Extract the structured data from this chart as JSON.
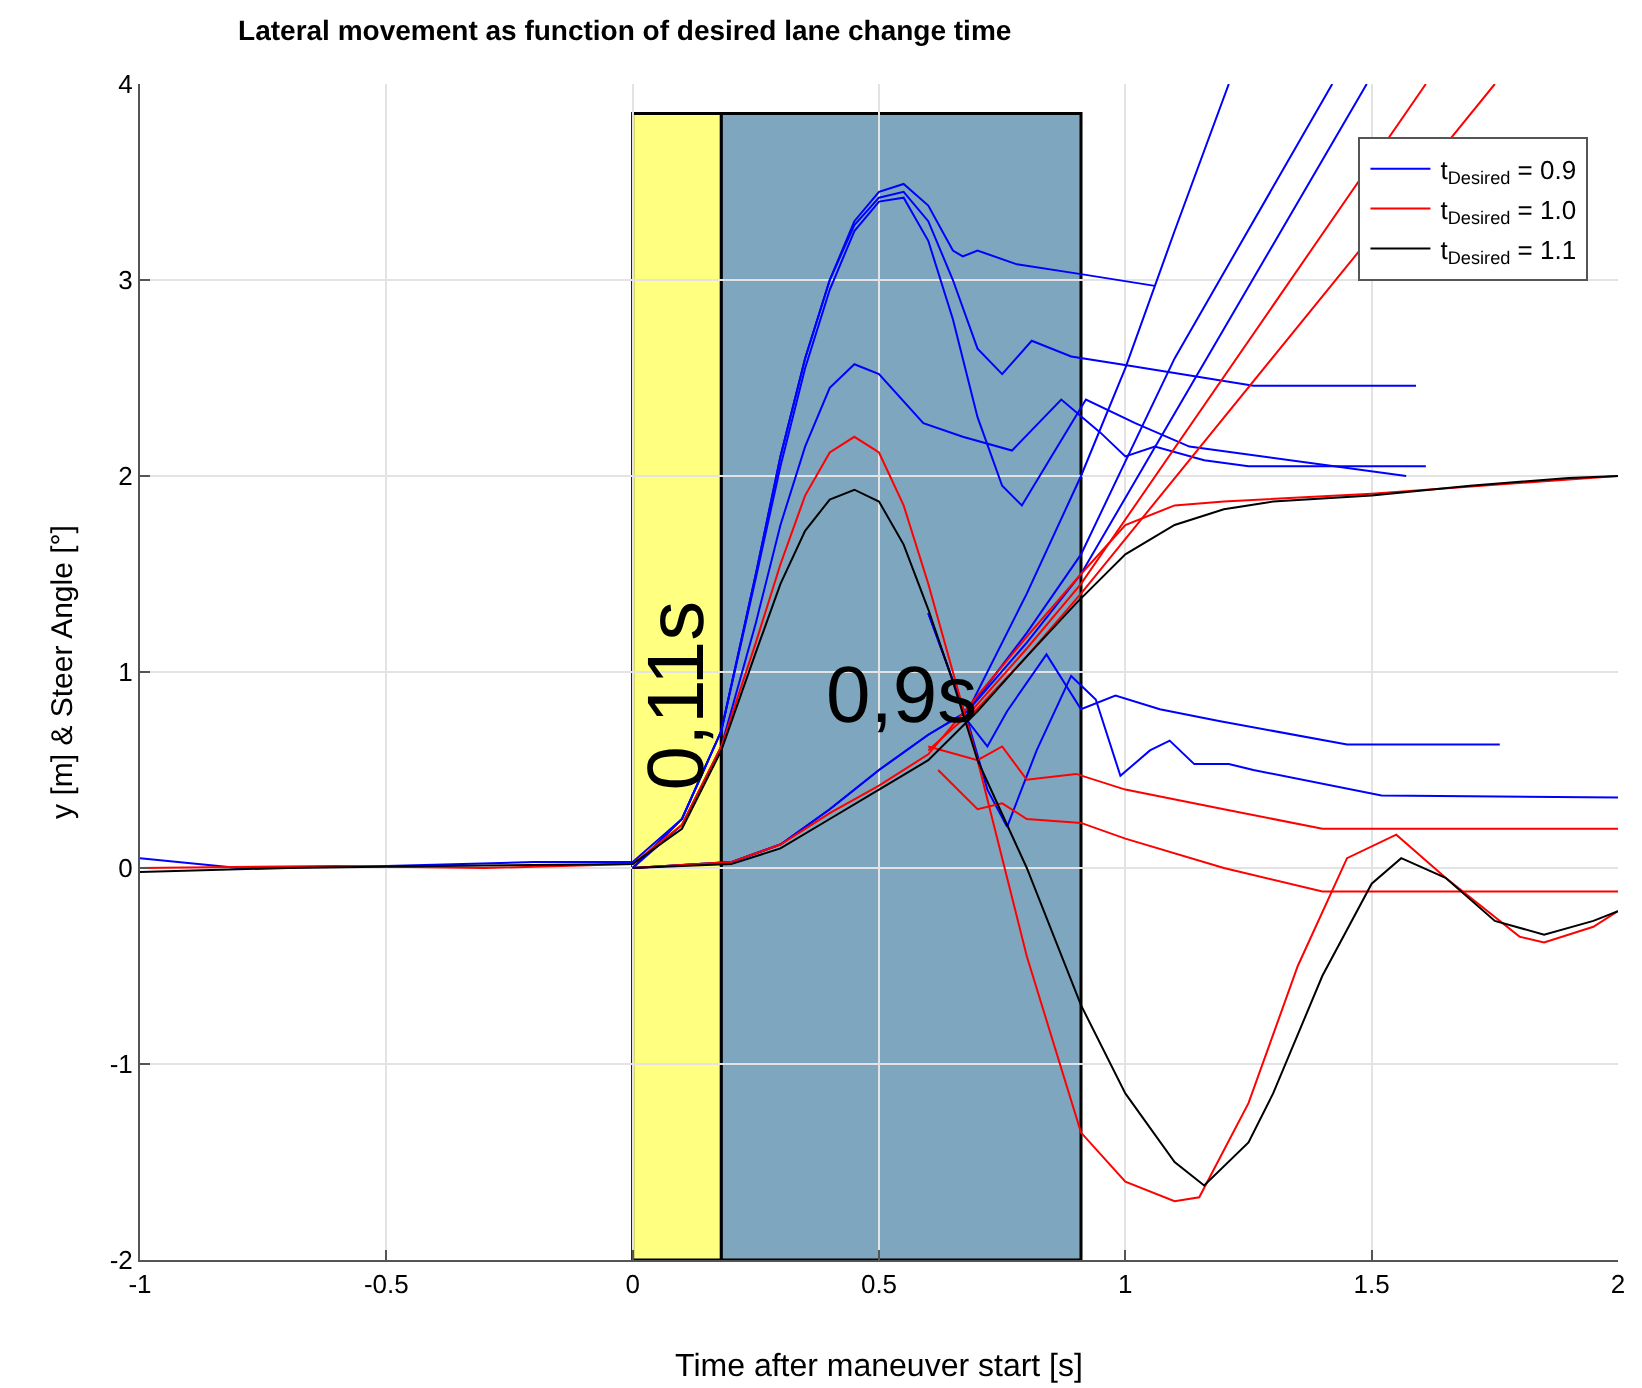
{
  "chart_data": {
    "type": "line",
    "title": "Lateral movement as function of desired lane change time",
    "xlabel": "Time after maneuver start [s]",
    "ylabel": "y [m] & Steer Angle [°]",
    "xlim": [
      -1,
      2
    ],
    "xticks": [
      -1,
      -0.5,
      0,
      0.5,
      1,
      1.5,
      2
    ],
    "ylim": [
      -2,
      4
    ],
    "yticks": [
      -2,
      -1,
      0,
      1,
      2,
      3,
      4
    ],
    "grid": true,
    "legend": "top right",
    "marker": "none",
    "line_style": "solid",
    "bands": [
      {
        "axis": "x",
        "from": 0,
        "to": 0.18,
        "label": "0,11s",
        "color": "#ffff80"
      },
      {
        "axis": "x",
        "from": 0.18,
        "to": 0.91,
        "label": "0,9s",
        "color": "#7fa6bf"
      }
    ],
    "series": [
      {
        "name": "t$_{Desired}$ = 0.9",
        "color": "#0000ff",
        "x": [
          -1,
          -0.8,
          -0.5,
          -0.2,
          0,
          0.1,
          0.18,
          0.25,
          0.3,
          0.35,
          0.4,
          0.45,
          0.5,
          0.55,
          0.6,
          0.65,
          0.67,
          0.7,
          0.78,
          0.91,
          1.06
        ],
        "values": [
          0.05,
          0,
          0.01,
          0.03,
          0.03,
          0.25,
          0.7,
          1.5,
          2.1,
          2.6,
          3.0,
          3.3,
          3.45,
          3.49,
          3.38,
          3.15,
          3.12,
          3.15,
          3.08,
          3.03,
          2.97
        ]
      },
      {
        "color": "#0000ff",
        "x": [
          0,
          0.1,
          0.18,
          0.25,
          0.3,
          0.35,
          0.4,
          0.45,
          0.5,
          0.55,
          0.6,
          0.65,
          0.7,
          0.75,
          0.81,
          0.89,
          0.99,
          1.26,
          1.59
        ],
        "values": [
          0,
          0.25,
          0.7,
          1.5,
          2.1,
          2.6,
          3.0,
          3.28,
          3.42,
          3.45,
          3.3,
          3.0,
          2.65,
          2.52,
          2.69,
          2.61,
          2.57,
          2.46,
          2.46
        ]
      },
      {
        "color": "#0000ff",
        "x": [
          0,
          0.1,
          0.18,
          0.25,
          0.3,
          0.35,
          0.4,
          0.45,
          0.5,
          0.55,
          0.6,
          0.65,
          0.7,
          0.75,
          0.79,
          0.85,
          0.92,
          1.02,
          1.13,
          1.57
        ],
        "values": [
          0,
          0.25,
          0.7,
          1.48,
          2.05,
          2.55,
          2.95,
          3.25,
          3.4,
          3.42,
          3.2,
          2.8,
          2.3,
          1.95,
          1.85,
          2.1,
          2.39,
          2.27,
          2.15,
          2.0
        ]
      },
      {
        "color": "#0000ff",
        "x": [
          0,
          0.1,
          0.18,
          0.25,
          0.3,
          0.35,
          0.4,
          0.45,
          0.5,
          0.59,
          0.67,
          0.77,
          0.87,
          0.95,
          1.0,
          1.06,
          1.16,
          1.25,
          1.61
        ],
        "values": [
          0,
          0.22,
          0.62,
          1.25,
          1.75,
          2.15,
          2.45,
          2.57,
          2.52,
          2.27,
          2.2,
          2.13,
          2.39,
          2.22,
          2.1,
          2.15,
          2.08,
          2.05,
          2.05
        ]
      },
      {
        "color": "#0000ff",
        "x": [
          0.6,
          0.68,
          0.72,
          0.76,
          0.82,
          0.89,
          0.94,
          0.99,
          1.05,
          1.09,
          1.14,
          1.21,
          1.26,
          1.52,
          2.0
        ],
        "values": [
          1.3,
          0.75,
          0.4,
          0.21,
          0.6,
          0.98,
          0.86,
          0.47,
          0.6,
          0.65,
          0.53,
          0.53,
          0.5,
          0.37,
          0.36
        ]
      },
      {
        "color": "#0000ff",
        "x": [
          0.6,
          0.68,
          0.72,
          0.76,
          0.84,
          0.91,
          0.98,
          1.07,
          1.19,
          1.45,
          1.76
        ],
        "values": [
          1.3,
          0.75,
          0.62,
          0.8,
          1.09,
          0.81,
          0.88,
          0.81,
          0.75,
          0.63,
          0.63
        ]
      },
      {
        "color": "#0000ff",
        "x": [
          0,
          0.2,
          0.3,
          0.4,
          0.5,
          0.6,
          0.68,
          0.8,
          0.91,
          1.0,
          1.1,
          1.21
        ],
        "values": [
          0,
          0.03,
          0.12,
          0.3,
          0.5,
          0.68,
          0.8,
          1.4,
          2.0,
          2.55,
          3.25,
          4.0
        ]
      },
      {
        "color": "#0000ff",
        "x": [
          0,
          0.2,
          0.3,
          0.4,
          0.5,
          0.6,
          0.68,
          0.8,
          0.91,
          1.1,
          1.42
        ],
        "values": [
          0,
          0.03,
          0.12,
          0.3,
          0.5,
          0.68,
          0.8,
          1.2,
          1.6,
          2.6,
          4.0
        ]
      },
      {
        "color": "#0000ff",
        "x": [
          0.68,
          0.8,
          0.91,
          1.49
        ],
        "values": [
          0.8,
          1.15,
          1.5,
          4.0
        ]
      },
      {
        "name": "t$_{Desired}$ = 1.0",
        "color": "#ff0000",
        "x": [
          -1,
          -0.6,
          -0.3,
          0,
          0.1,
          0.18,
          0.25,
          0.3,
          0.35,
          0.4,
          0.45,
          0.5,
          0.55,
          0.6,
          0.65,
          0.7,
          0.8,
          0.91,
          1.0,
          1.1,
          1.15,
          1.25,
          1.35,
          1.45,
          1.55,
          1.65,
          1.8,
          1.85,
          1.95,
          2.0
        ],
        "values": [
          0,
          0.01,
          0,
          0.02,
          0.22,
          0.62,
          1.15,
          1.55,
          1.9,
          2.12,
          2.2,
          2.12,
          1.85,
          1.45,
          1.0,
          0.55,
          -0.45,
          -1.35,
          -1.6,
          -1.7,
          -1.68,
          -1.2,
          -0.5,
          0.05,
          0.17,
          -0.05,
          -0.35,
          -0.38,
          -0.3,
          -0.22
        ]
      },
      {
        "color": "#ff0000",
        "x": [
          0.6,
          0.7,
          0.75,
          0.8,
          0.9,
          1.0,
          1.2,
          1.4,
          2.0
        ],
        "values": [
          0.62,
          0.55,
          0.62,
          0.45,
          0.48,
          0.4,
          0.3,
          0.2,
          0.2
        ]
      },
      {
        "color": "#ff0000",
        "x": [
          0.62,
          0.7,
          0.75,
          0.8,
          0.91,
          1.0,
          1.2,
          1.4,
          2.0
        ],
        "values": [
          0.5,
          0.3,
          0.33,
          0.25,
          0.23,
          0.15,
          0.0,
          -0.12,
          -0.12
        ]
      },
      {
        "color": "#ff0000",
        "x": [
          0,
          0.2,
          0.3,
          0.4,
          0.5,
          0.6,
          0.7,
          0.8,
          0.91,
          1.0,
          1.1,
          1.2,
          1.5,
          2.0
        ],
        "values": [
          0,
          0.03,
          0.12,
          0.28,
          0.42,
          0.58,
          0.88,
          1.18,
          1.5,
          1.75,
          1.85,
          1.87,
          1.91,
          2.0
        ]
      },
      {
        "color": "#ff0000",
        "x": [
          0.6,
          0.68,
          0.8,
          0.91,
          1.61
        ],
        "values": [
          0.6,
          0.78,
          1.12,
          1.45,
          4.0
        ]
      },
      {
        "color": "#ff0000",
        "x": [
          0.68,
          0.8,
          0.91,
          1.75
        ],
        "values": [
          0.76,
          1.08,
          1.4,
          4.0
        ]
      },
      {
        "name": "t$_{Desired}$ = 1.1",
        "color": "#000000",
        "x": [
          -1,
          -0.7,
          -0.4,
          0,
          0.1,
          0.18,
          0.25,
          0.3,
          0.35,
          0.4,
          0.45,
          0.5,
          0.55,
          0.6,
          0.65,
          0.7,
          0.8,
          0.91,
          1.0,
          1.1,
          1.16,
          1.25,
          1.3,
          1.4,
          1.5,
          1.56,
          1.65,
          1.75,
          1.85,
          1.95,
          2.0
        ],
        "values": [
          -0.02,
          0,
          0.01,
          0.02,
          0.2,
          0.6,
          1.1,
          1.45,
          1.72,
          1.88,
          1.93,
          1.87,
          1.65,
          1.32,
          0.95,
          0.55,
          0.0,
          -0.7,
          -1.15,
          -1.5,
          -1.62,
          -1.4,
          -1.15,
          -0.55,
          -0.08,
          0.05,
          -0.05,
          -0.27,
          -0.34,
          -0.27,
          -0.22
        ]
      },
      {
        "color": "#000000",
        "x": [
          0,
          0.2,
          0.3,
          0.4,
          0.5,
          0.6,
          0.7,
          0.8,
          0.9,
          1.0,
          1.1,
          1.2,
          1.3,
          1.5,
          1.7,
          1.9,
          2.0
        ],
        "values": [
          0,
          0.02,
          0.1,
          0.25,
          0.4,
          0.55,
          0.8,
          1.08,
          1.35,
          1.6,
          1.75,
          1.83,
          1.87,
          1.9,
          1.95,
          1.99,
          2.0
        ]
      }
    ]
  }
}
